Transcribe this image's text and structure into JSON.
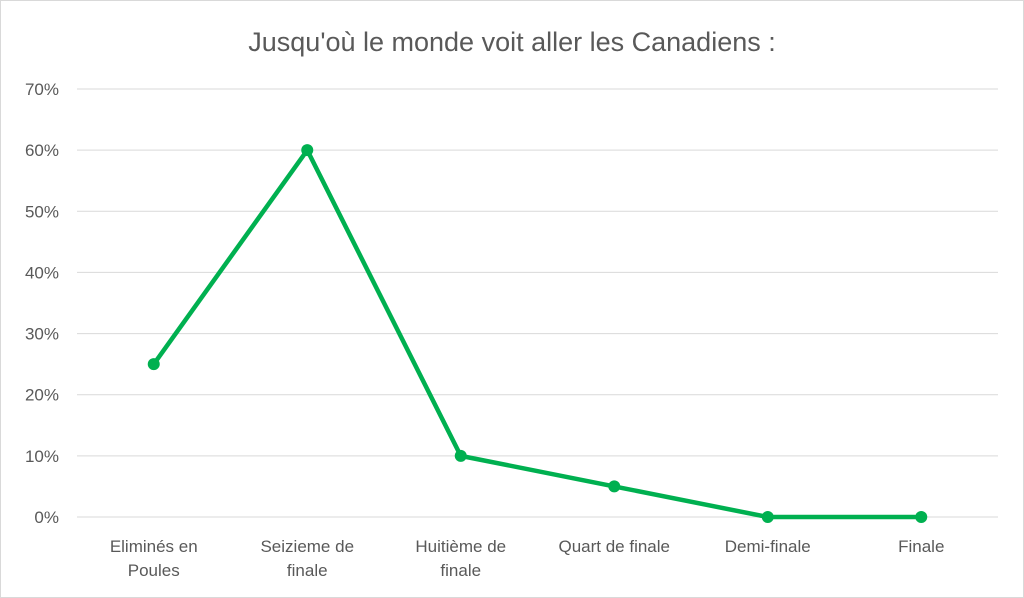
{
  "chart_data": {
    "type": "line",
    "title": "Jusqu'où le monde voit aller les Canadiens :",
    "xlabel": "",
    "ylabel": "",
    "categories": [
      [
        "Eliminés en",
        "Poules"
      ],
      [
        "Seizieme de",
        "finale"
      ],
      [
        "Huitième de",
        "finale"
      ],
      [
        "Quart de finale"
      ],
      [
        "Demi-finale"
      ],
      [
        "Finale"
      ]
    ],
    "series": [
      {
        "values": [
          25,
          60,
          10,
          5,
          0,
          0
        ],
        "color": "#00b050"
      }
    ],
    "ylim": [
      0,
      70
    ],
    "yticks": [
      0,
      10,
      20,
      30,
      40,
      50,
      60,
      70
    ],
    "ytick_suffix": "%",
    "grid": true,
    "legend": "none"
  }
}
